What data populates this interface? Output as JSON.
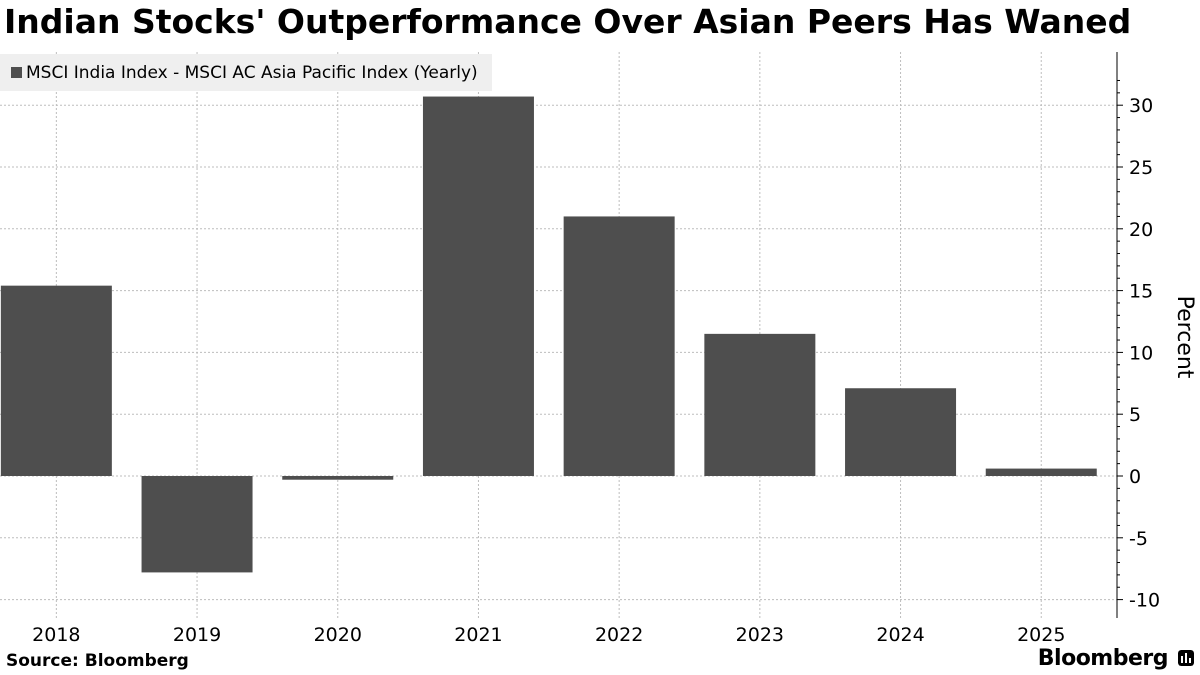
{
  "chart_data": {
    "type": "bar",
    "title": "Indian Stocks' Outperformance Over Asian Peers Has Waned",
    "legend": [
      "MSCI India Index - MSCI AC Asia Pacific Index (Yearly)"
    ],
    "categories": [
      "2018",
      "2019",
      "2020",
      "2021",
      "2022",
      "2023",
      "2024",
      "2025"
    ],
    "series": [
      {
        "name": "MSCI India Index - MSCI AC Asia Pacific Index (Yearly)",
        "values": [
          15.4,
          -7.8,
          -0.3,
          30.7,
          21.0,
          11.5,
          7.1,
          0.6
        ],
        "color": "#4e4e4e"
      }
    ],
    "xlabel": "",
    "ylabel": "Percent",
    "ylim": [
      -11,
      34
    ],
    "yticks": [
      30,
      25,
      20,
      15,
      10,
      5,
      0,
      -5,
      -10
    ],
    "grid": true,
    "legend_position": "top-left",
    "source": "Source: Bloomberg",
    "brand": "Bloomberg"
  },
  "colors": {
    "bar": "#4e4e4e",
    "grid": "#bdbdbd",
    "legend_bg": "#efefef"
  }
}
